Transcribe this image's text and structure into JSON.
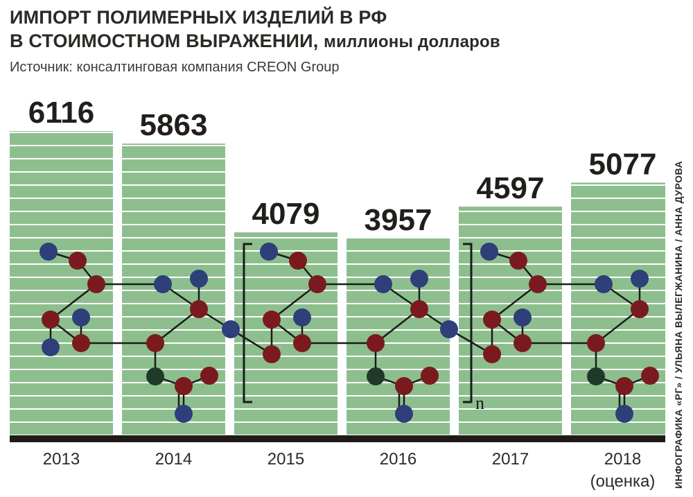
{
  "title_line1": "ИМПОРТ ПОЛИМЕРНЫХ ИЗДЕЛИЙ В РФ",
  "title_line2": "В СТОИМОСТНОМ ВЫРАЖЕНИИ,",
  "title_unit": "миллионы долларов",
  "source": "Источник: консалтинговая компания CREON Group",
  "credit": "ИНФОГРАФИКА «РГ» / УЛЬЯНА ВЫЛЕГЖАНИНА / АННА ДУРОВА",
  "polymer_index": "n",
  "colors": {
    "bar": "#8dbf8e",
    "bar_stripe": "#ffffff",
    "baseline": "#1f1b16",
    "atom_blue": "#2e3f7a",
    "atom_red": "#7a1a1f",
    "atom_green": "#1f3a28",
    "bond": "#1b1b1b"
  },
  "chart_data": {
    "type": "bar",
    "categories": [
      "2013",
      "2014",
      "2015",
      "2016",
      "2017",
      "2018"
    ],
    "category_sublabels": [
      "",
      "",
      "",
      "",
      "",
      "(оценка)"
    ],
    "values": [
      6116,
      5863,
      4079,
      3957,
      4597,
      5077
    ],
    "title": "ИМПОРТ ПОЛИМЕРНЫХ ИЗДЕЛИЙ В РФ В СТОИМОСТНОМ ВЫРАЖЕНИИ, миллионы долларов",
    "xlabel": "",
    "ylabel": "",
    "ylim": [
      0,
      6116
    ],
    "grid": false,
    "legend": "none"
  }
}
